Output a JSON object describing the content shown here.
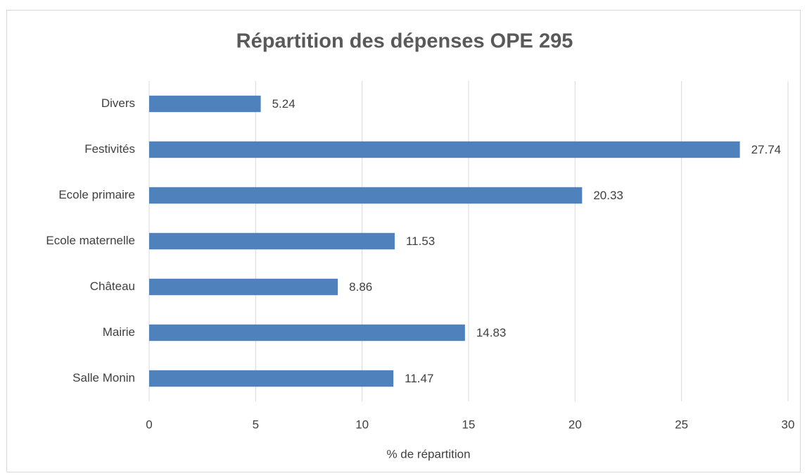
{
  "chart_data": {
    "type": "bar",
    "orientation": "horizontal",
    "title": "Répartition des dépenses OPE 295",
    "x_label": "% de répartition",
    "categories": [
      "Divers",
      "Festivités",
      "Ecole primaire",
      "Ecole maternelle",
      "Château",
      "Mairie",
      "Salle Monin"
    ],
    "values": [
      5.24,
      27.74,
      20.33,
      11.53,
      8.86,
      14.83,
      11.47
    ],
    "color": "#4f81bd",
    "xlim": [
      0,
      30
    ],
    "xticks": [
      0,
      5,
      10,
      15,
      20,
      25,
      30
    ],
    "grid": true
  }
}
